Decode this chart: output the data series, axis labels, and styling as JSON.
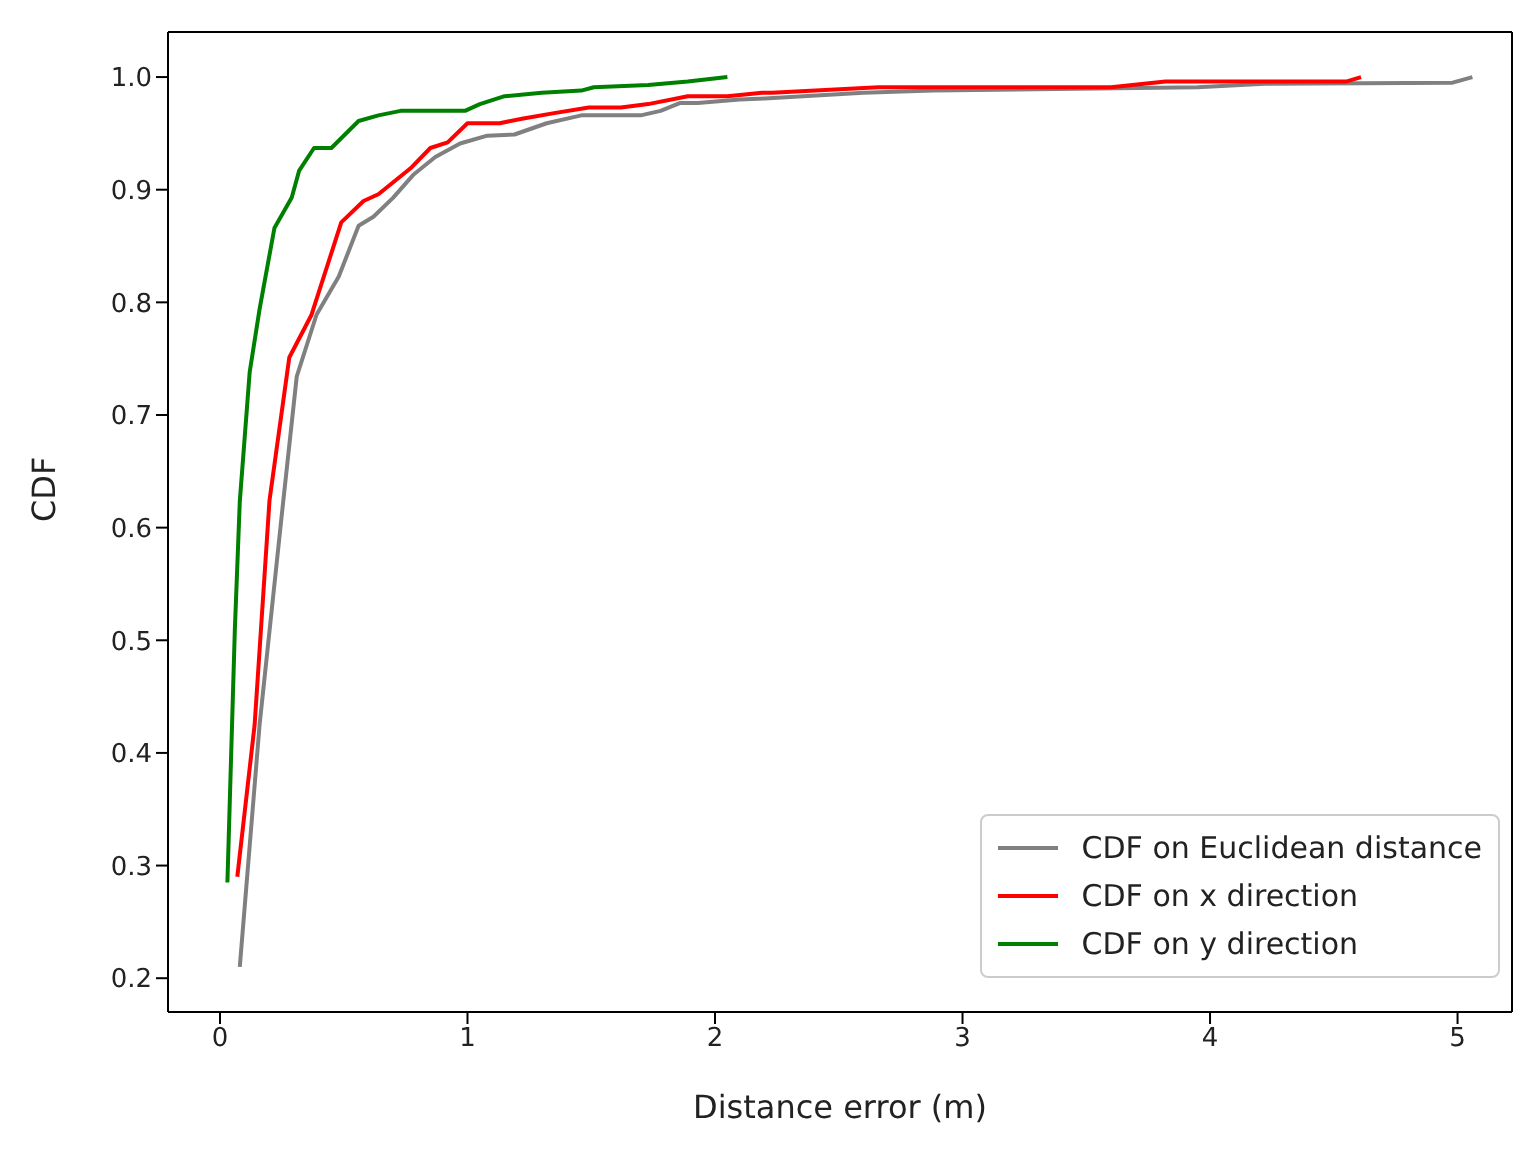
{
  "chart_data": {
    "type": "line",
    "xlabel": "Distance error (m)",
    "ylabel": "CDF",
    "xlim": [
      -0.21,
      5.22
    ],
    "ylim": [
      0.17,
      1.04
    ],
    "xticks": [
      0,
      1,
      2,
      3,
      4,
      5
    ],
    "yticks": [
      0.2,
      0.3,
      0.4,
      0.5,
      0.6,
      0.7,
      0.8,
      0.9,
      {
        "value": 1,
        "label": "1.0"
      }
    ],
    "grid": false,
    "legend": "bottom right",
    "marker": "none",
    "line_style": "solid",
    "series": [
      {
        "name": "CDF on Euclidean distance",
        "color": "#808080",
        "x": [
          0.08,
          0.16,
          0.25,
          0.31,
          0.39,
          0.48,
          0.56,
          0.62,
          0.7,
          0.78,
          0.87,
          0.97,
          1.08,
          1.19,
          1.32,
          1.46,
          1.7,
          1.78,
          1.86,
          1.93,
          2.1,
          2.2,
          2.6,
          2.88,
          3.95,
          4.22,
          4.98,
          5.06
        ],
        "values": [
          0.21,
          0.425,
          0.612,
          0.734,
          0.789,
          0.823,
          0.868,
          0.876,
          0.893,
          0.913,
          0.929,
          0.941,
          0.948,
          0.949,
          0.959,
          0.966,
          0.966,
          0.97,
          0.977,
          0.977,
          0.98,
          0.981,
          0.986,
          0.988,
          0.991,
          0.994,
          0.995,
          1.0
        ]
      },
      {
        "name": "CDF on x direction",
        "color": "#ff0000",
        "x": [
          0.07,
          0.14,
          0.2,
          0.28,
          0.37,
          0.49,
          0.58,
          0.64,
          0.77,
          0.85,
          0.92,
          1.0,
          1.13,
          1.22,
          1.35,
          1.49,
          1.62,
          1.73,
          1.89,
          2.05,
          2.19,
          2.23,
          2.66,
          3.6,
          3.82,
          4.55,
          4.61
        ],
        "values": [
          0.29,
          0.425,
          0.624,
          0.751,
          0.789,
          0.871,
          0.89,
          0.896,
          0.919,
          0.937,
          0.942,
          0.959,
          0.959,
          0.963,
          0.968,
          0.973,
          0.973,
          0.976,
          0.983,
          0.983,
          0.986,
          0.986,
          0.991,
          0.991,
          0.996,
          0.996,
          1.0
        ]
      },
      {
        "name": "CDF on y direction",
        "color": "#008000",
        "x": [
          0.03,
          0.06,
          0.08,
          0.12,
          0.16,
          0.22,
          0.29,
          0.32,
          0.38,
          0.45,
          0.56,
          0.64,
          0.73,
          0.99,
          1.05,
          1.15,
          1.3,
          1.46,
          1.51,
          1.73,
          1.89,
          2.05
        ],
        "values": [
          0.285,
          0.509,
          0.623,
          0.738,
          0.794,
          0.866,
          0.893,
          0.917,
          0.937,
          0.937,
          0.961,
          0.966,
          0.97,
          0.97,
          0.976,
          0.983,
          0.986,
          0.988,
          0.991,
          0.993,
          0.996,
          1.0
        ]
      }
    ]
  }
}
